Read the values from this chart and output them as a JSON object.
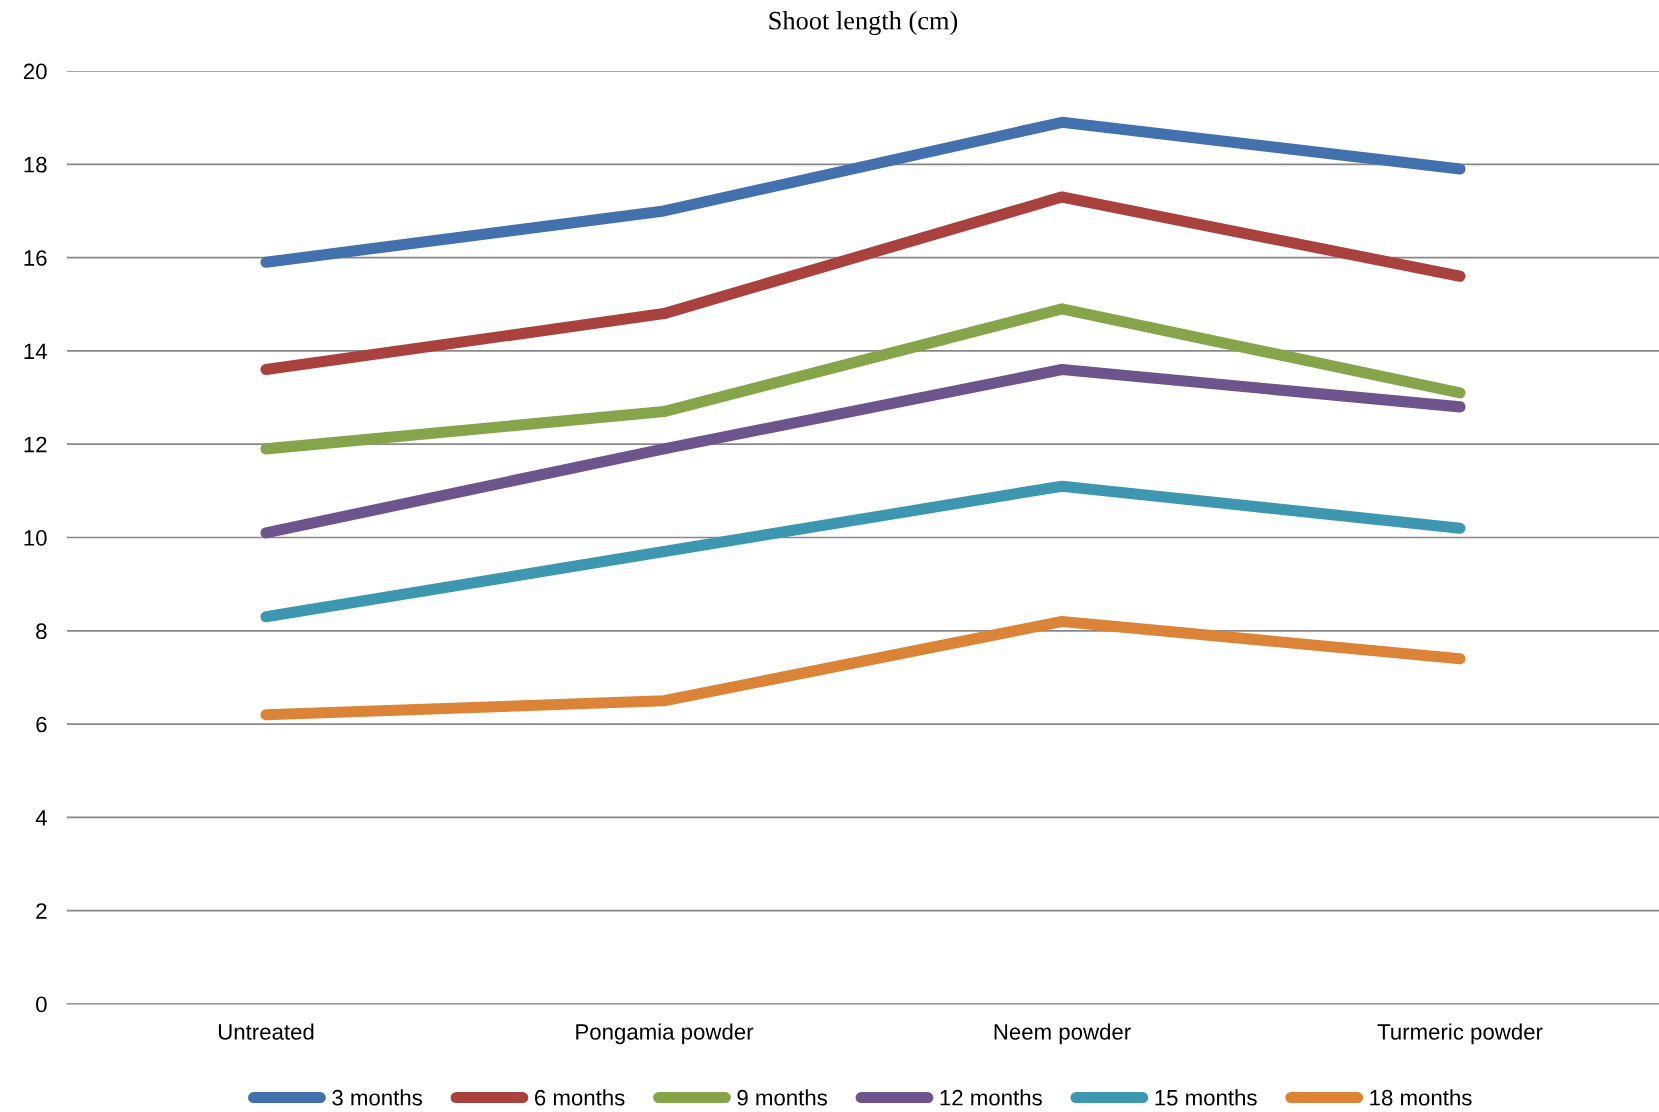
{
  "chart_data": {
    "type": "line",
    "title": "Shoot length (cm)",
    "categories": [
      "Untreated",
      "Pongamia powder",
      "Neem powder",
      "Turmeric powder"
    ],
    "series": [
      {
        "name": "3 months",
        "color": "#4271ad",
        "values": [
          15.9,
          17.0,
          18.9,
          17.9
        ]
      },
      {
        "name": "6 months",
        "color": "#a9423f",
        "values": [
          13.6,
          14.8,
          17.3,
          15.6
        ]
      },
      {
        "name": "9 months",
        "color": "#86a44a",
        "values": [
          11.9,
          12.7,
          14.9,
          13.1
        ]
      },
      {
        "name": "12 months",
        "color": "#6e548d",
        "values": [
          10.1,
          11.9,
          13.6,
          12.8
        ]
      },
      {
        "name": "15 months",
        "color": "#3d97b0",
        "values": [
          8.3,
          9.7,
          11.1,
          10.2
        ]
      },
      {
        "name": "18 months",
        "color": "#db8438",
        "values": [
          6.2,
          6.5,
          8.2,
          7.4
        ]
      }
    ],
    "ylim": [
      0,
      20
    ],
    "yticks": [
      0,
      2,
      4,
      6,
      8,
      10,
      12,
      14,
      16,
      18,
      20
    ],
    "grid": "y",
    "legend": "bottom",
    "marker": "none",
    "line_style": "solid"
  }
}
